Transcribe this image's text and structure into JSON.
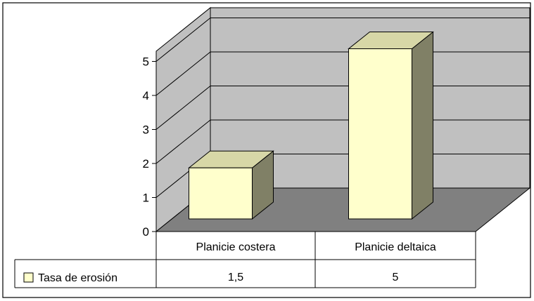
{
  "chart_data": {
    "type": "bar",
    "style": "3d-column-with-data-table",
    "categories": [
      "Planicie costera",
      "Planicie deltaica"
    ],
    "series": [
      {
        "name": "Tasa de erosión",
        "values": [
          1.5,
          5
        ],
        "labels": [
          "1,5",
          "5"
        ],
        "color": "#ffffcc"
      }
    ],
    "yticks": [
      0,
      1,
      2,
      3,
      4,
      5
    ],
    "ylim": [
      0,
      5
    ],
    "grid": true,
    "legend": "data-table",
    "colors": {
      "wall": "#c0c0c0",
      "floor": "#808080",
      "bar_front": "#ffffcc",
      "bar_top": "#d7d7a7",
      "bar_side": "#808066"
    }
  }
}
